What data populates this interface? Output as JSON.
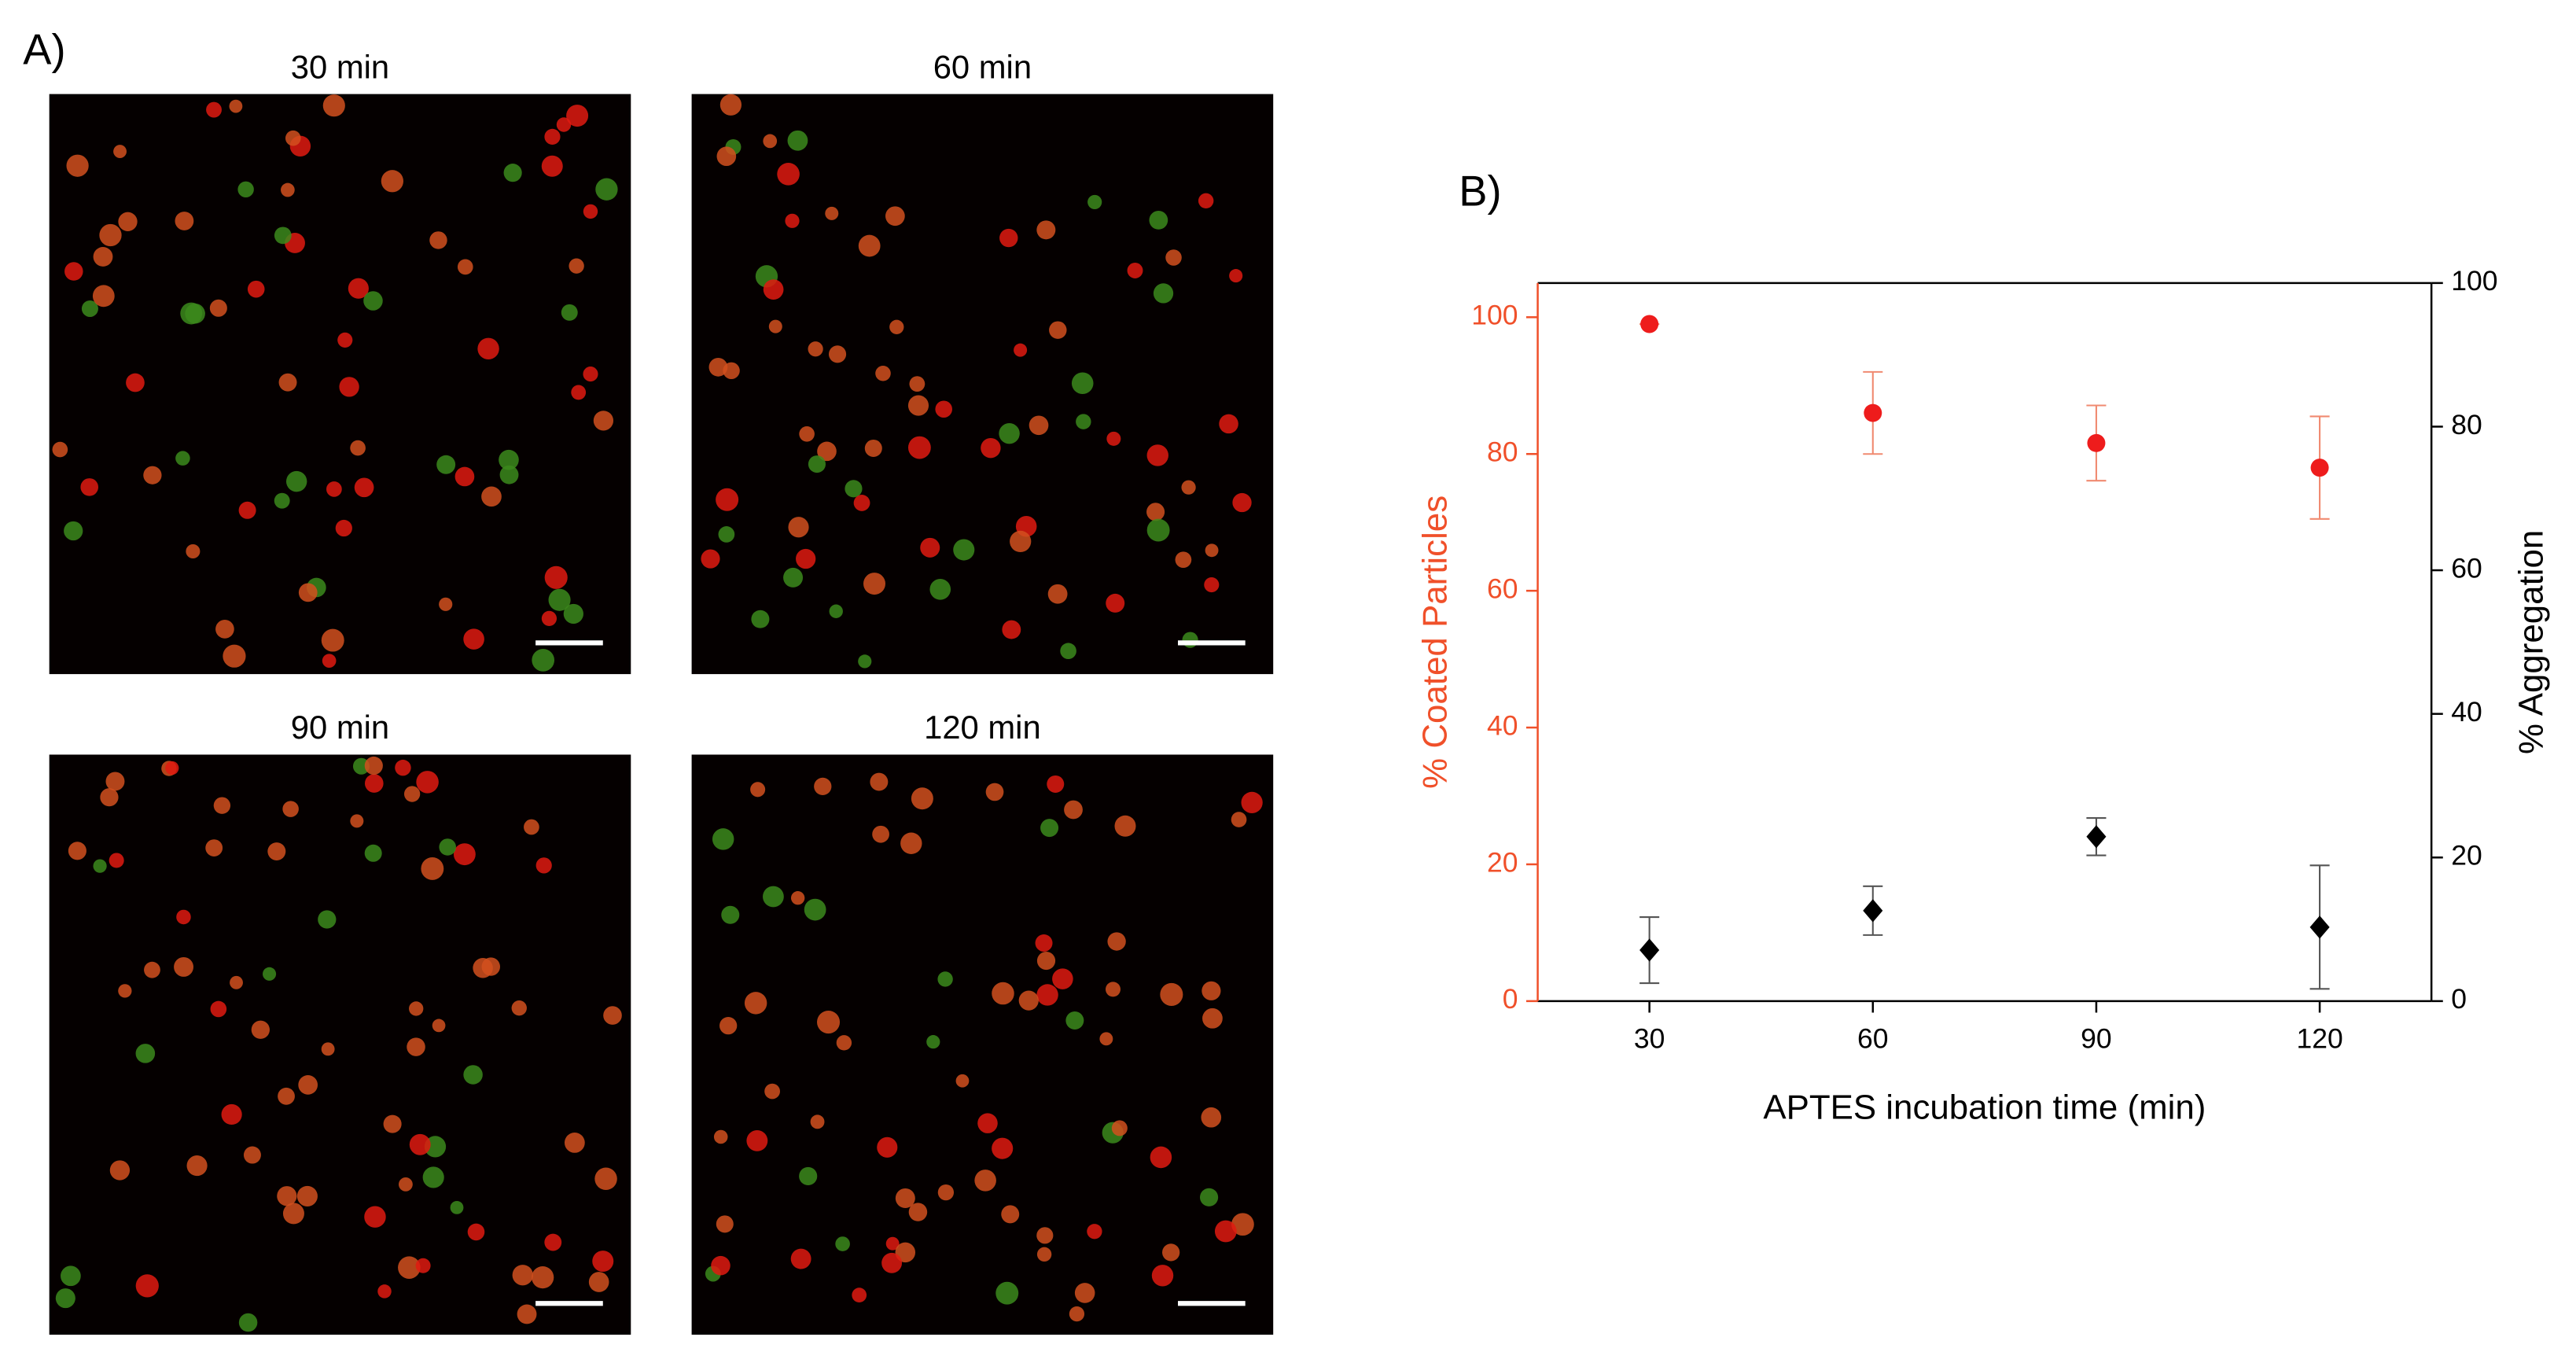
{
  "panel_a": {
    "label": "A)",
    "images": [
      "30 min",
      "60 min",
      "90 min",
      "120 min"
    ]
  },
  "panel_b_label": "B)",
  "chart_data": {
    "type": "scatter",
    "xlabel": "APTES incubation time (min)",
    "ylabel": "% Coated Particles",
    "y2label": "% Aggregation",
    "x": [
      30,
      60,
      90,
      120
    ],
    "xlim": [
      15,
      135
    ],
    "xticks": [
      30,
      60,
      90,
      120
    ],
    "ylim": [
      0,
      105
    ],
    "yticks": [
      0,
      20,
      40,
      60,
      80,
      100
    ],
    "y2lim": [
      0,
      100
    ],
    "y2ticks": [
      0,
      20,
      40,
      60,
      80,
      100
    ],
    "ycolor": "#f0502a",
    "series": [
      {
        "color": "#ee1c1c",
        "marker": "circle",
        "values": [
          99,
          86,
          81.6,
          78
        ],
        "errors": [
          0,
          6,
          5.5,
          7.5
        ]
      },
      {
        "color": "#000000",
        "marker": "diamond",
        "axis": "y2",
        "values": [
          7.1,
          12.6,
          22.9,
          10.3
        ],
        "errors": [
          4.6,
          3.4,
          2.6,
          8.6
        ]
      }
    ]
  }
}
